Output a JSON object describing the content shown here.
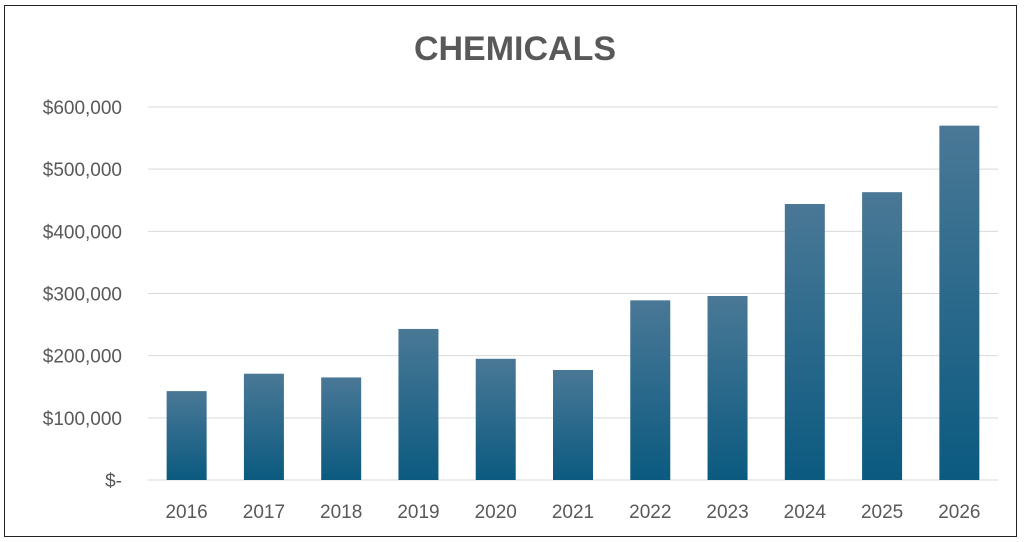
{
  "chart_data": {
    "type": "bar",
    "title": "CHEMICALS",
    "xlabel": "",
    "ylabel": "",
    "categories": [
      "2016",
      "2017",
      "2018",
      "2019",
      "2020",
      "2021",
      "2022",
      "2023",
      "2024",
      "2025",
      "2026"
    ],
    "values": [
      143000,
      171000,
      165000,
      243000,
      195000,
      177000,
      289000,
      296000,
      444000,
      463000,
      570000
    ],
    "ylim": [
      0,
      600000
    ],
    "yticks": [
      0,
      100000,
      200000,
      300000,
      400000,
      500000,
      600000
    ],
    "ytick_labels": [
      "$-",
      "$100,000",
      "$200,000",
      "$300,000",
      "$400,000",
      "$500,000",
      "$600,000"
    ],
    "grid": true,
    "legend": "none",
    "colors": {
      "bar_top": "#4a7896",
      "bar_bottom": "#0b5a80",
      "text": "#595959",
      "grid": "#d9d9d9"
    }
  }
}
